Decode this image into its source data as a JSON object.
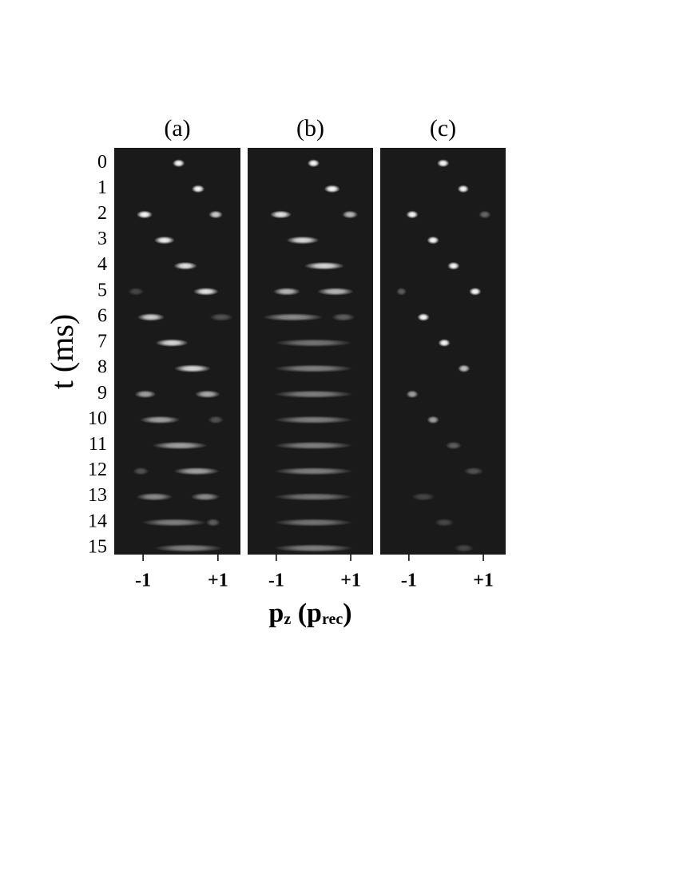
{
  "chart_data": [
    {
      "type": "scatter",
      "title": "(a)",
      "y_label": "t (ms)",
      "background": "#1a1a1a",
      "xlim": [
        -1.77,
        1.6
      ],
      "xticks": [
        -1,
        {
          "value": 1,
          "label": "+1"
        }
      ],
      "ylim": [
        -0.6,
        15.25
      ],
      "y_inverted": true,
      "yticks": [
        0,
        1,
        2,
        3,
        4,
        5,
        6,
        7,
        8,
        9,
        10,
        11,
        12,
        13,
        14,
        15
      ],
      "series": [
        {
          "color": "#ffffff",
          "x": [
            -0.05,
            0.47,
            -0.96,
            0.94,
            -0.43,
            0.13,
            0.68,
            -1.19,
            -0.79,
            1.09,
            -0.23,
            0.32,
            -0.94,
            0.72,
            -0.55,
            0.94,
            -0.02,
            0.43,
            -1.06,
            -0.7,
            0.66,
            -0.17,
            0.87,
            0.21
          ],
          "y": [
            0,
            1,
            2,
            2,
            3,
            4,
            5,
            5,
            6,
            6,
            7,
            8,
            9,
            9,
            10,
            10,
            11,
            12,
            12,
            13,
            13,
            14,
            14,
            15
          ],
          "width": [
            0.2,
            0.22,
            0.3,
            0.25,
            0.42,
            0.5,
            0.55,
            0.3,
            0.6,
            0.5,
            0.75,
            0.85,
            0.45,
            0.55,
            0.95,
            0.3,
            1.35,
            1.1,
            0.3,
            0.85,
            0.65,
            1.6,
            0.25,
            1.7
          ],
          "brightness": [
            1,
            1,
            1,
            0.8,
            0.95,
            0.9,
            0.9,
            0.2,
            0.8,
            0.25,
            0.85,
            0.85,
            0.6,
            0.65,
            0.6,
            0.25,
            0.6,
            0.6,
            0.25,
            0.5,
            0.5,
            0.45,
            0.3,
            0.45
          ]
        }
      ]
    },
    {
      "type": "scatter",
      "title": "(b)",
      "background": "#1a1a1a",
      "x_label": [
        {
          "text": "p"
        },
        {
          "text": "z",
          "sub": true
        },
        {
          "text": " (p"
        },
        {
          "text": "rec",
          "sub": true
        },
        {
          "text": ")"
        }
      ],
      "xlim": [
        -1.77,
        1.6
      ],
      "xticks": [
        -1,
        {
          "value": 1,
          "label": "+1"
        }
      ],
      "ylim": [
        -0.6,
        15.25
      ],
      "y_inverted": true,
      "series": [
        {
          "color": "#ffffff",
          "x": [
            0,
            0.5,
            -0.88,
            0.98,
            -0.29,
            0.29,
            -0.72,
            0.59,
            -0.55,
            0.8,
            0,
            0,
            0,
            0,
            0,
            0,
            0,
            0,
            0
          ],
          "y": [
            0,
            1,
            2,
            2,
            3,
            4,
            5,
            5,
            6,
            6,
            7,
            8,
            9,
            10,
            11,
            12,
            13,
            14,
            15
          ],
          "width": [
            0.2,
            0.3,
            0.45,
            0.3,
            0.75,
            0.95,
            0.6,
            0.85,
            1.5,
            0.5,
            1.95,
            2,
            2,
            2,
            2,
            2,
            2,
            2,
            2
          ],
          "brightness": [
            1,
            1,
            0.9,
            0.7,
            0.85,
            0.85,
            0.7,
            0.7,
            0.5,
            0.3,
            0.4,
            0.45,
            0.45,
            0.45,
            0.45,
            0.45,
            0.4,
            0.4,
            0.45
          ]
        }
      ]
    },
    {
      "type": "scatter",
      "title": "(c)",
      "background": "#1a1a1a",
      "xlim": [
        -1.77,
        1.6
      ],
      "xticks": [
        -1,
        {
          "value": 1,
          "label": "+1"
        }
      ],
      "ylim": [
        -0.6,
        15.25
      ],
      "y_inverted": true,
      "series": [
        {
          "color": "#ffffff",
          "x": [
            -0.08,
            0.46,
            -0.91,
            1.04,
            -0.35,
            0.2,
            0.78,
            -1.2,
            -0.61,
            -0.05,
            0.48,
            -0.91,
            -0.35,
            0.2,
            0.74,
            -0.61,
            -0.05,
            0.48
          ],
          "y": [
            0,
            1,
            2,
            2,
            3,
            4,
            5,
            5,
            6,
            7,
            8,
            9,
            10,
            11,
            12,
            13,
            14,
            15
          ],
          "width": [
            0.2,
            0.18,
            0.2,
            0.2,
            0.2,
            0.2,
            0.2,
            0.15,
            0.2,
            0.2,
            0.2,
            0.2,
            0.2,
            0.3,
            0.4,
            0.5,
            0.4,
            0.4
          ],
          "brightness": [
            1,
            1,
            1,
            0.35,
            1,
            1,
            1,
            0.3,
            1,
            1,
            0.75,
            0.6,
            0.6,
            0.3,
            0.25,
            0.2,
            0.2,
            0.2
          ]
        }
      ]
    }
  ]
}
